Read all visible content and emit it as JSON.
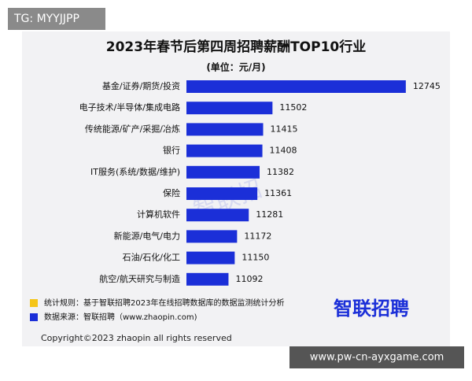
{
  "badge": "TG: MYYJJPP",
  "site_badge": "www.pw-cn-ayxgame.com",
  "chart_data": {
    "type": "bar",
    "orientation": "horizontal",
    "title": "2023年春节后第四周招聘薪酬TOP10行业",
    "subtitle": "(单位：元/月)",
    "categories": [
      "基金/证券/期货/投资",
      "电子技术/半导体/集成电路",
      "传统能源/矿产/采掘/冶炼",
      "银行",
      "IT服务(系统/数据/维护)",
      "保险",
      "计算机软件",
      "新能源/电气/电力",
      "石油/石化/化工",
      "航空/航天研究与制造"
    ],
    "values": [
      12745,
      11502,
      11415,
      11408,
      11382,
      11361,
      11281,
      11172,
      11150,
      11092
    ],
    "color": "#1b2fd8",
    "xlim": [
      10700,
      12900
    ]
  },
  "watermark": "智联招",
  "notes": [
    {
      "color": "#f5c518",
      "text": "统计规则：基于智联招聘2023年在线招聘数据库的数据监测统计分析"
    },
    {
      "color": "#1b2fd8",
      "text": "数据来源：智联招聘（www.zhaopin.com)"
    }
  ],
  "logo": "智联招聘",
  "copyright": "Copyright©2023 zhaopin all rights reserved"
}
